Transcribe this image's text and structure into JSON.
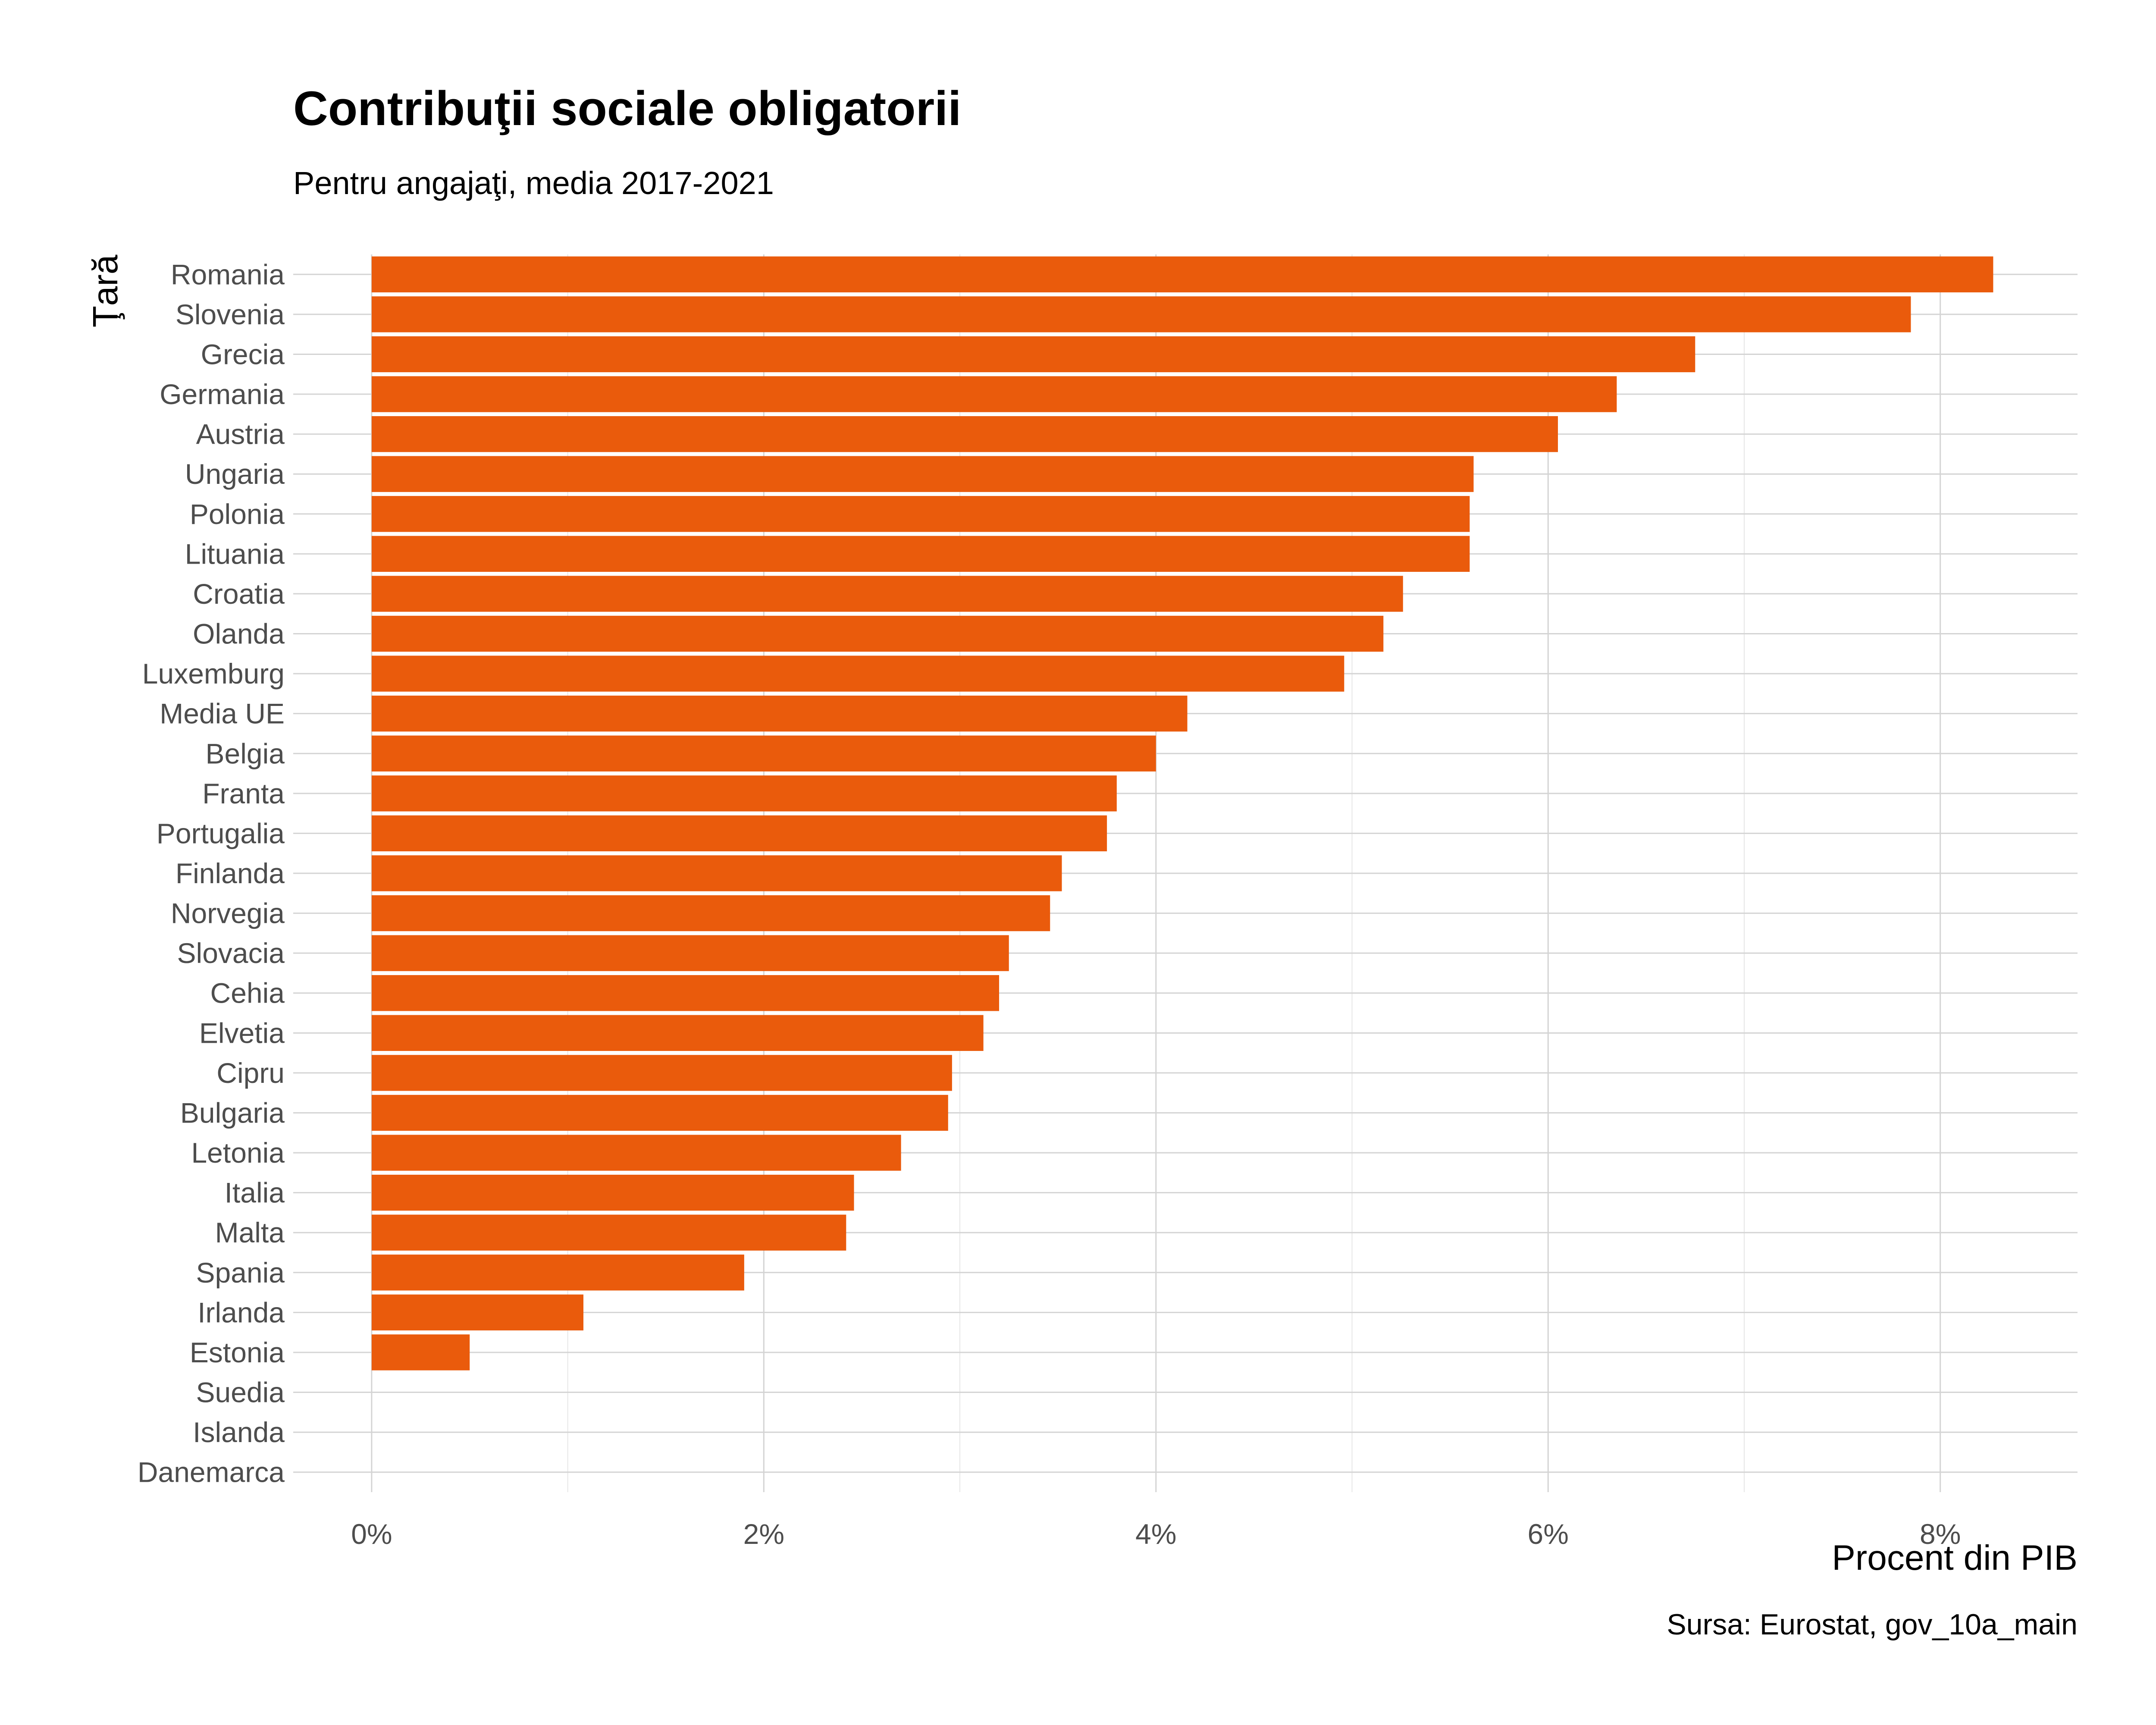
{
  "chart_data": {
    "type": "bar",
    "orientation": "horizontal",
    "title": "Contribuţii sociale obligatorii",
    "subtitle": "Pentru angajaţi, media 2017-2021",
    "xlabel": "Procent din PIB",
    "ylabel": "Ţară",
    "caption": "Sursa: Eurostat, gov_10a_main",
    "categories": [
      "Romania",
      "Slovenia",
      "Grecia",
      "Germania",
      "Austria",
      "Ungaria",
      "Polonia",
      "Lituania",
      "Croatia",
      "Olanda",
      "Luxemburg",
      "Media UE",
      "Belgia",
      "Franta",
      "Portugalia",
      "Finlanda",
      "Norvegia",
      "Slovacia",
      "Cehia",
      "Elvetia",
      "Cipru",
      "Bulgaria",
      "Letonia",
      "Italia",
      "Malta",
      "Spania",
      "Irlanda",
      "Estonia",
      "Suedia",
      "Islanda",
      "Danemarca"
    ],
    "values": [
      8.27,
      7.85,
      6.75,
      6.35,
      6.05,
      5.62,
      5.6,
      5.6,
      5.26,
      5.16,
      4.96,
      4.16,
      4.0,
      3.8,
      3.75,
      3.52,
      3.46,
      3.25,
      3.2,
      3.12,
      2.96,
      2.94,
      2.7,
      2.46,
      2.42,
      1.9,
      1.08,
      0.5,
      0,
      0,
      0
    ],
    "xlim": [
      -0.4,
      8.7
    ],
    "xticks": [
      0,
      2,
      4,
      6,
      8
    ],
    "xtick_labels": [
      "0%",
      "2%",
      "4%",
      "6%",
      "8%"
    ],
    "grid": true,
    "colors": {
      "bar": "#EA5B0C"
    }
  }
}
